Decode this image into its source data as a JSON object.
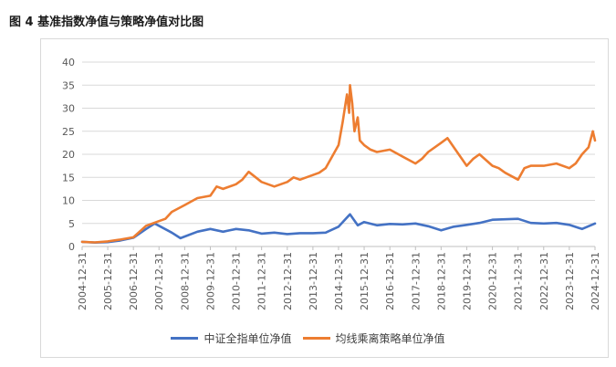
{
  "figure": {
    "title": "图 4 基准指数净值与策略净值对比图"
  },
  "chart_data": {
    "type": "line",
    "title": "",
    "xlabel": "",
    "ylabel": "",
    "ylim": [
      0,
      40
    ],
    "yticks": [
      "0",
      "5",
      "10",
      "15",
      "20",
      "25",
      "30",
      "35",
      "40"
    ],
    "x_tick_labels": [
      "2004-12-31",
      "2005-12-31",
      "2006-12-31",
      "2007-12-31",
      "2008-12-31",
      "2009-12-31",
      "2010-12-31",
      "2011-12-31",
      "2012-12-31",
      "2013-12-31",
      "2014-12-31",
      "2015-12-31",
      "2016-12-31",
      "2017-12-31",
      "2018-12-31",
      "2019-12-31",
      "2020-12-31",
      "2021-12-31",
      "2022-12-31",
      "2023-12-31",
      "2024-12-31"
    ],
    "grid": true,
    "legend_position": "bottom",
    "series": [
      {
        "name": "中证全指单位净值",
        "color": "#4472c4",
        "x": [
          "2004-12-31",
          "2005-06-30",
          "2005-12-31",
          "2006-06-30",
          "2006-12-31",
          "2007-06-30",
          "2007-10-31",
          "2008-06-30",
          "2008-10-31",
          "2009-06-30",
          "2009-12-31",
          "2010-06-30",
          "2010-12-31",
          "2011-06-30",
          "2011-12-31",
          "2012-06-30",
          "2012-12-31",
          "2013-06-30",
          "2013-12-31",
          "2014-06-30",
          "2014-12-31",
          "2015-06-12",
          "2015-09-30",
          "2015-12-31",
          "2016-06-30",
          "2016-12-31",
          "2017-06-30",
          "2017-12-31",
          "2018-06-30",
          "2018-12-31",
          "2019-06-30",
          "2019-12-31",
          "2020-06-30",
          "2020-12-31",
          "2021-06-30",
          "2021-12-31",
          "2022-06-30",
          "2022-12-31",
          "2023-06-30",
          "2023-12-31",
          "2024-06-30",
          "2024-12-31"
        ],
        "values": [
          1.0,
          0.85,
          0.95,
          1.3,
          1.9,
          3.8,
          5.0,
          3.0,
          1.8,
          3.2,
          3.8,
          3.2,
          3.8,
          3.5,
          2.8,
          3.0,
          2.7,
          2.9,
          2.9,
          3.0,
          4.3,
          7.0,
          4.6,
          5.3,
          4.6,
          4.9,
          4.8,
          5.0,
          4.4,
          3.5,
          4.3,
          4.7,
          5.1,
          5.8,
          5.9,
          6.0,
          5.1,
          5.0,
          5.1,
          4.7,
          3.8,
          5.0
        ]
      },
      {
        "name": "均线乘离策略单位净值",
        "color": "#ed7d31",
        "x": [
          "2004-12-31",
          "2005-06-30",
          "2005-12-31",
          "2006-06-30",
          "2006-12-31",
          "2007-06-30",
          "2007-12-31",
          "2008-03-31",
          "2008-06-30",
          "2008-12-31",
          "2009-06-30",
          "2009-12-31",
          "2010-03-31",
          "2010-06-30",
          "2010-12-31",
          "2011-03-31",
          "2011-06-30",
          "2011-12-31",
          "2012-03-31",
          "2012-06-30",
          "2012-12-31",
          "2013-03-31",
          "2013-06-30",
          "2013-12-31",
          "2014-03-31",
          "2014-06-30",
          "2014-12-31",
          "2015-02-28",
          "2015-04-30",
          "2015-05-31",
          "2015-06-12",
          "2015-07-15",
          "2015-08-15",
          "2015-09-30",
          "2015-10-31",
          "2015-12-31",
          "2016-03-31",
          "2016-06-30",
          "2016-12-31",
          "2017-06-30",
          "2017-12-31",
          "2018-03-31",
          "2018-06-30",
          "2018-12-31",
          "2019-03-31",
          "2019-06-30",
          "2019-12-31",
          "2020-03-31",
          "2020-06-30",
          "2020-12-31",
          "2021-03-31",
          "2021-06-30",
          "2021-12-31",
          "2022-03-31",
          "2022-06-30",
          "2022-12-31",
          "2023-06-30",
          "2023-12-31",
          "2024-03-31",
          "2024-06-30",
          "2024-09-30",
          "2024-11-30",
          "2024-12-31"
        ],
        "values": [
          1.0,
          0.9,
          1.1,
          1.5,
          2.0,
          4.5,
          5.5,
          6.0,
          7.5,
          9.0,
          10.5,
          11.0,
          13.0,
          12.5,
          13.5,
          14.5,
          16.2,
          14.0,
          13.5,
          13.0,
          14.0,
          15.0,
          14.5,
          15.5,
          16.0,
          17.0,
          22.0,
          27.0,
          33.0,
          29.0,
          35.0,
          31.0,
          25.0,
          28.0,
          23.0,
          22.0,
          21.0,
          20.5,
          21.0,
          19.5,
          18.0,
          19.0,
          20.5,
          22.5,
          23.5,
          21.5,
          17.5,
          19.0,
          20.0,
          17.5,
          17.0,
          16.0,
          14.5,
          17.0,
          17.5,
          17.5,
          18.0,
          17.0,
          18.0,
          20.0,
          21.5,
          25.0,
          23.0
        ]
      }
    ]
  }
}
